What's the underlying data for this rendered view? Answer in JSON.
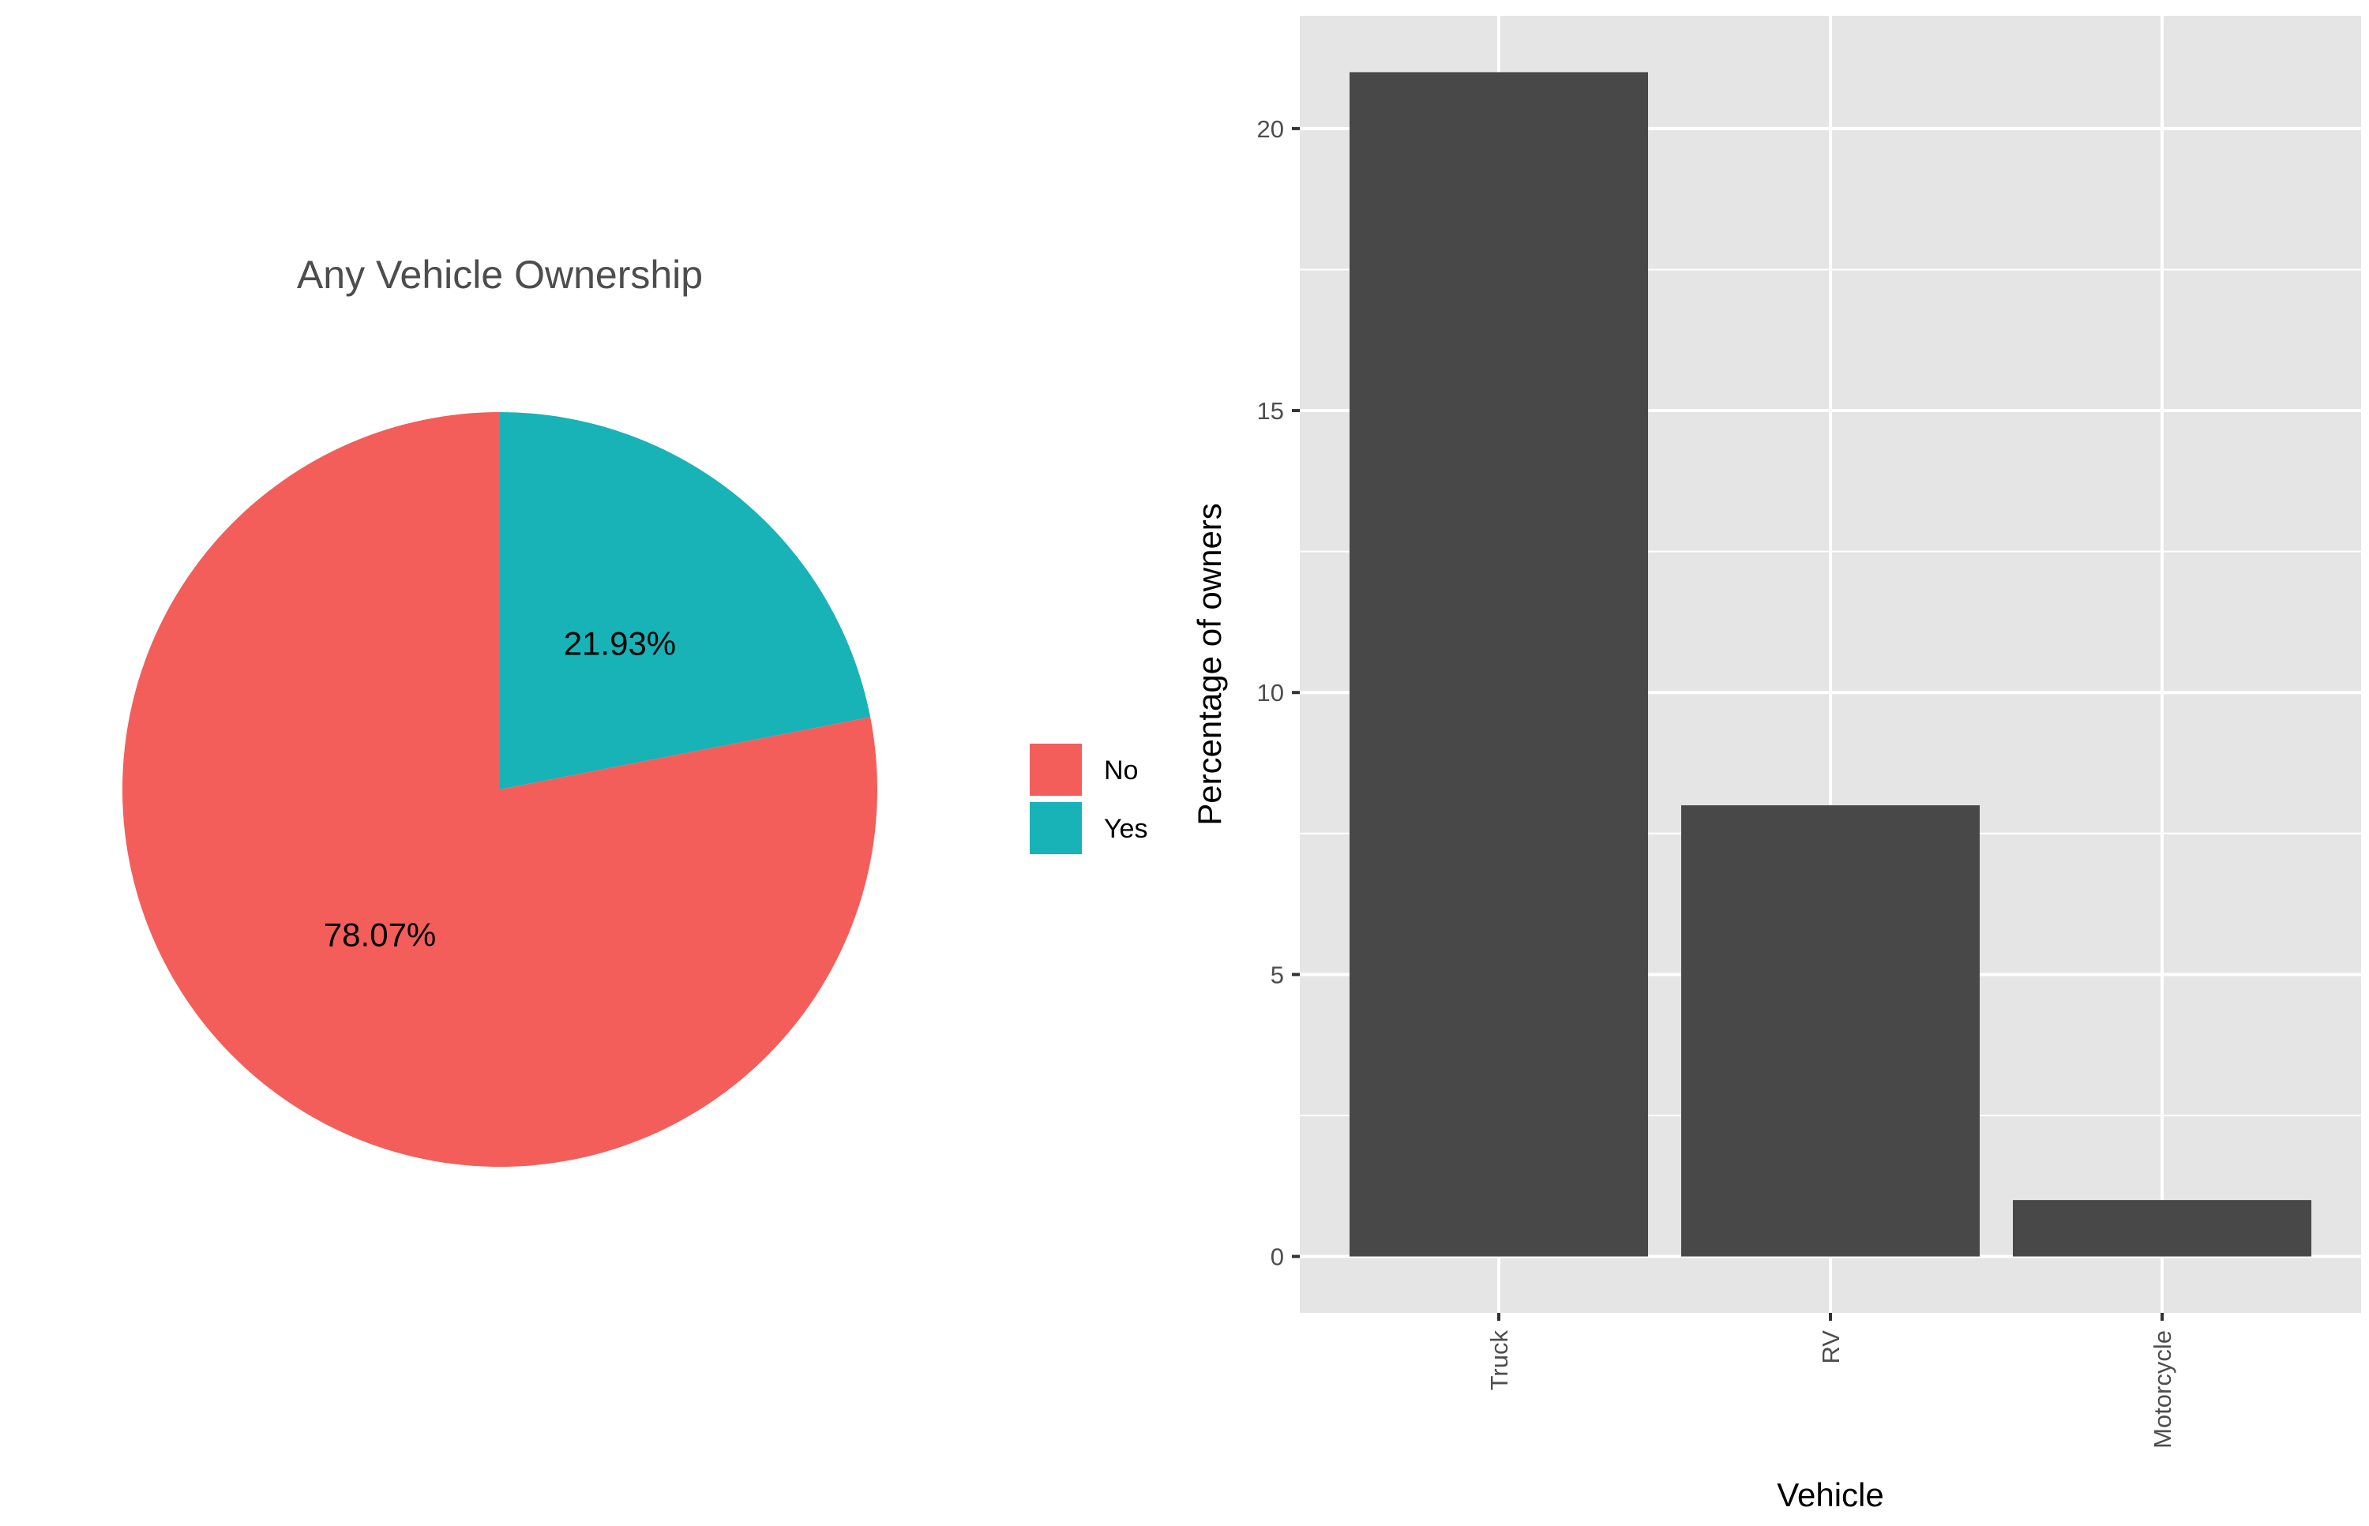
{
  "chart_data": [
    {
      "type": "pie",
      "title": "Any Vehicle Ownership",
      "slices": [
        {
          "label": "No",
          "value": 78.07,
          "display": "78.07%",
          "color": "#F35E5A"
        },
        {
          "label": "Yes",
          "value": 21.93,
          "display": "21.93%",
          "color": "#17B3B7"
        }
      ],
      "legend": {
        "position": "right",
        "entries": [
          {
            "label": "No",
            "color": "#F35E5A"
          },
          {
            "label": "Yes",
            "color": "#17B3B7"
          }
        ]
      }
    },
    {
      "type": "bar",
      "categories": [
        "Truck",
        "RV",
        "Motorcycle"
      ],
      "values": [
        21,
        8,
        1
      ],
      "xlabel": "Vehicle",
      "ylabel": "Percentage of owners",
      "ylim": [
        -1,
        22
      ],
      "yticks": [
        0,
        5,
        10,
        15,
        20
      ],
      "ytick_labels": [
        "0",
        "5",
        "10",
        "15",
        "20"
      ],
      "grid": true,
      "bar_color": "#484848",
      "panel_color": "#E5E5E5",
      "grid_color": "#FFFFFF"
    }
  ]
}
